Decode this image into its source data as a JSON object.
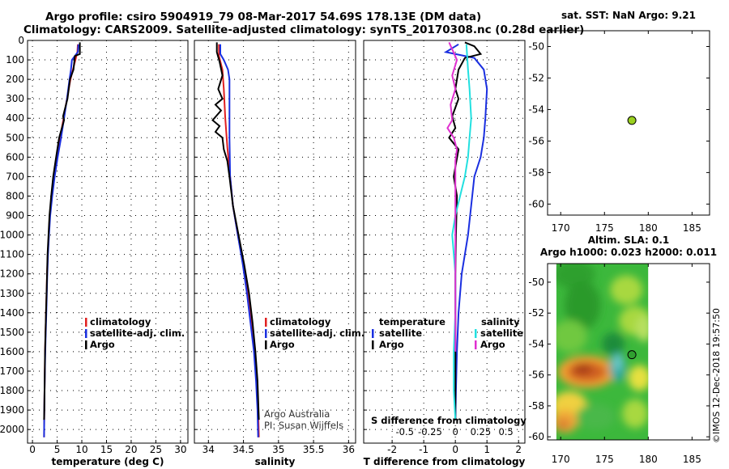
{
  "header": {
    "line1": "Argo profile: csiro 5904919_79 08-Mar-2017 54.69S 178.13E (DM data)",
    "line2": "Climatology: CARS2009. Satellite-adjusted climatology: synTS_20170308.nc (0.28d earlier)"
  },
  "colors": {
    "climatology": "#e02020",
    "satellite": "#1a2fe0",
    "argo": "#000000",
    "satellite_s": "#22e0e0",
    "argo_s": "#e030d0"
  },
  "chart_data": [
    {
      "type": "line",
      "name": "temperature-profile",
      "xlabel": "temperature (deg C)",
      "ylabel": "",
      "xlim": [
        -1,
        31.5
      ],
      "ylim": [
        2070,
        0
      ],
      "xticks": [
        0,
        5,
        10,
        15,
        20,
        25,
        30
      ],
      "xticklabels": [
        "0",
        "5",
        "10",
        "15",
        "20",
        "25",
        "30"
      ],
      "yticks": [
        0,
        100,
        200,
        300,
        400,
        500,
        600,
        700,
        800,
        900,
        1000,
        1100,
        1200,
        1300,
        1400,
        1500,
        1600,
        1700,
        1800,
        1900,
        2000
      ],
      "yticklabels": [
        "0",
        "100",
        "200",
        "300",
        "400",
        "500",
        "600",
        "700",
        "800",
        "900",
        "1000",
        "1100",
        "1200",
        "1300",
        "1400",
        "1500",
        "1600",
        "1700",
        "1800",
        "1900",
        "2000"
      ],
      "legend": [
        "climatology",
        "satellite-adj. clim.",
        "Argo"
      ],
      "series": [
        {
          "name": "climatology",
          "color": "#e02020",
          "points": [
            [
              9.2,
              20
            ],
            [
              9.1,
              60
            ],
            [
              8.7,
              100
            ],
            [
              8.2,
              150
            ],
            [
              7.7,
              200
            ],
            [
              7.0,
              300
            ],
            [
              6.3,
              400
            ],
            [
              5.6,
              500
            ],
            [
              4.9,
              600
            ],
            [
              4.3,
              700
            ],
            [
              3.9,
              800
            ],
            [
              3.5,
              900
            ],
            [
              3.3,
              1000
            ],
            [
              3.1,
              1100
            ],
            [
              2.95,
              1200
            ],
            [
              2.85,
              1300
            ],
            [
              2.75,
              1400
            ],
            [
              2.65,
              1500
            ],
            [
              2.55,
              1600
            ],
            [
              2.5,
              1700
            ],
            [
              2.45,
              1800
            ],
            [
              2.4,
              1900
            ],
            [
              2.35,
              2040
            ]
          ]
        },
        {
          "name": "satellite-adj. clim.",
          "color": "#1a2fe0",
          "points": [
            [
              9.3,
              20
            ],
            [
              9.2,
              60
            ],
            [
              8.0,
              100
            ],
            [
              7.8,
              150
            ],
            [
              7.5,
              200
            ],
            [
              7.0,
              300
            ],
            [
              6.4,
              400
            ],
            [
              5.8,
              500
            ],
            [
              5.1,
              600
            ],
            [
              4.5,
              700
            ],
            [
              4.0,
              800
            ],
            [
              3.6,
              900
            ],
            [
              3.35,
              1000
            ],
            [
              3.15,
              1100
            ],
            [
              3.0,
              1200
            ],
            [
              2.9,
              1300
            ],
            [
              2.8,
              1400
            ],
            [
              2.7,
              1500
            ],
            [
              2.6,
              1600
            ],
            [
              2.52,
              1700
            ],
            [
              2.45,
              1800
            ],
            [
              2.4,
              1900
            ],
            [
              2.35,
              2040
            ]
          ]
        },
        {
          "name": "Argo",
          "color": "#000000",
          "points": [
            [
              9.6,
              10
            ],
            [
              9.6,
              70
            ],
            [
              8.6,
              80
            ],
            [
              8.3,
              150
            ],
            [
              7.6,
              200
            ],
            [
              7.1,
              300
            ],
            [
              6.2,
              390
            ],
            [
              6.4,
              410
            ],
            [
              5.4,
              500
            ],
            [
              4.8,
              600
            ],
            [
              4.2,
              700
            ],
            [
              3.8,
              800
            ],
            [
              3.45,
              900
            ],
            [
              3.25,
              1000
            ],
            [
              3.05,
              1100
            ],
            [
              2.95,
              1200
            ],
            [
              2.85,
              1300
            ],
            [
              2.75,
              1400
            ],
            [
              2.65,
              1500
            ],
            [
              2.55,
              1600
            ],
            [
              2.5,
              1700
            ],
            [
              2.45,
              1800
            ],
            [
              2.4,
              1900
            ],
            [
              2.35,
              1950
            ]
          ]
        }
      ]
    },
    {
      "type": "line",
      "name": "salinity-profile",
      "xlabel": "salinity",
      "xlim": [
        33.8,
        36.1
      ],
      "ylim": [
        2070,
        0
      ],
      "xticks": [
        34,
        34.5,
        35,
        35.5,
        36
      ],
      "xticklabels": [
        "34",
        "34.5",
        "35",
        "35.5",
        "36"
      ],
      "legend": [
        "climatology",
        "satellite-adj. clim.",
        "Argo"
      ],
      "credits": [
        "Argo Australia",
        "PI: Susan Wijffels"
      ],
      "series": [
        {
          "name": "climatology",
          "color": "#e02020",
          "points": [
            [
              34.15,
              20
            ],
            [
              34.15,
              80
            ],
            [
              34.2,
              150
            ],
            [
              34.22,
              250
            ],
            [
              34.24,
              400
            ],
            [
              34.27,
              550
            ],
            [
              34.31,
              700
            ],
            [
              34.35,
              850
            ],
            [
              34.42,
              1000
            ],
            [
              34.5,
              1150
            ],
            [
              34.56,
              1300
            ],
            [
              34.61,
              1450
            ],
            [
              34.66,
              1600
            ],
            [
              34.69,
              1750
            ],
            [
              34.71,
              1900
            ],
            [
              34.72,
              2040
            ]
          ]
        },
        {
          "name": "satellite-adj. clim.",
          "color": "#1a2fe0",
          "points": [
            [
              34.17,
              20
            ],
            [
              34.17,
              70
            ],
            [
              34.22,
              100
            ],
            [
              34.28,
              150
            ],
            [
              34.3,
              200
            ],
            [
              34.3,
              300
            ],
            [
              34.3,
              500
            ],
            [
              34.31,
              700
            ],
            [
              34.35,
              850
            ],
            [
              34.42,
              1000
            ],
            [
              34.49,
              1150
            ],
            [
              34.55,
              1300
            ],
            [
              34.6,
              1450
            ],
            [
              34.65,
              1600
            ],
            [
              34.68,
              1750
            ],
            [
              34.7,
              1900
            ],
            [
              34.71,
              2040
            ]
          ]
        },
        {
          "name": "Argo",
          "color": "#000000",
          "points": [
            [
              34.12,
              10
            ],
            [
              34.12,
              60
            ],
            [
              34.16,
              110
            ],
            [
              34.2,
              180
            ],
            [
              34.14,
              250
            ],
            [
              34.2,
              300
            ],
            [
              34.1,
              330
            ],
            [
              34.18,
              360
            ],
            [
              34.06,
              410
            ],
            [
              34.16,
              440
            ],
            [
              34.1,
              470
            ],
            [
              34.2,
              500
            ],
            [
              34.22,
              560
            ],
            [
              34.27,
              620
            ],
            [
              34.3,
              700
            ],
            [
              34.35,
              850
            ],
            [
              34.43,
              1000
            ],
            [
              34.51,
              1150
            ],
            [
              34.58,
              1300
            ],
            [
              34.63,
              1450
            ],
            [
              34.67,
              1600
            ],
            [
              34.7,
              1750
            ],
            [
              34.72,
              1950
            ]
          ]
        }
      ]
    },
    {
      "type": "line",
      "name": "difference-profile",
      "xlabel": "T difference from climatology",
      "xlabel2": "S difference from climatology",
      "xlim": [
        -2.9,
        2.2
      ],
      "ylim": [
        2070,
        0
      ],
      "xticks": [
        -2,
        -1,
        0,
        1,
        2
      ],
      "xticklabels": [
        "-2",
        "-1",
        "0",
        "1",
        "2"
      ],
      "s_ticklabels": [
        "-0.5",
        "-0.25",
        "0",
        "0.25",
        "0.5"
      ],
      "legend_temperature": {
        "title": "temperature",
        "items": [
          "satellite",
          "Argo"
        ]
      },
      "legend_salinity": {
        "title": "salinity",
        "items": [
          "satellite",
          "Argo"
        ]
      },
      "series": [
        {
          "name": "T satellite",
          "color": "#1a2fe0",
          "points": [
            [
              0.1,
              20
            ],
            [
              -0.3,
              60
            ],
            [
              0.6,
              90
            ],
            [
              0.9,
              150
            ],
            [
              1.0,
              250
            ],
            [
              0.95,
              400
            ],
            [
              0.9,
              500
            ],
            [
              0.8,
              600
            ],
            [
              0.6,
              700
            ],
            [
              0.5,
              850
            ],
            [
              0.4,
              1000
            ],
            [
              0.2,
              1200
            ],
            [
              0.1,
              1400
            ],
            [
              0.05,
              1600
            ],
            [
              0.02,
              1800
            ],
            [
              0.0,
              1950
            ]
          ]
        },
        {
          "name": "T Argo",
          "color": "#000000",
          "points": [
            [
              0.3,
              10
            ],
            [
              0.6,
              30
            ],
            [
              0.8,
              70
            ],
            [
              0.3,
              90
            ],
            [
              0.1,
              150
            ],
            [
              0.0,
              250
            ],
            [
              0.1,
              300
            ],
            [
              -0.1,
              390
            ],
            [
              0.0,
              450
            ],
            [
              -0.2,
              500
            ],
            [
              0.1,
              560
            ],
            [
              0.0,
              650
            ],
            [
              -0.05,
              700
            ],
            [
              0.05,
              800
            ],
            [
              0.02,
              1000
            ],
            [
              0.0,
              1200
            ],
            [
              0.0,
              1400
            ],
            [
              0.0,
              1600
            ],
            [
              0.0,
              1800
            ],
            [
              0.0,
              1950
            ]
          ]
        },
        {
          "name": "S satellite",
          "color": "#22e0e0",
          "points": [
            [
              0.35,
              20
            ],
            [
              0.4,
              150
            ],
            [
              0.45,
              250
            ],
            [
              0.5,
              400
            ],
            [
              0.45,
              500
            ],
            [
              0.4,
              600
            ],
            [
              0.3,
              700
            ],
            [
              0.15,
              800
            ],
            [
              0.0,
              900
            ],
            [
              -0.1,
              1000
            ],
            [
              0.0,
              1200
            ],
            [
              0.0,
              1400
            ],
            [
              -0.05,
              1600
            ],
            [
              -0.05,
              1800
            ],
            [
              0.0,
              1950
            ]
          ]
        },
        {
          "name": "S Argo",
          "color": "#e030d0",
          "points": [
            [
              -0.2,
              10
            ],
            [
              0.05,
              100
            ],
            [
              -0.1,
              180
            ],
            [
              0.0,
              250
            ],
            [
              -0.15,
              330
            ],
            [
              -0.1,
              410
            ],
            [
              -0.25,
              450
            ],
            [
              -0.05,
              500
            ],
            [
              0.05,
              560
            ],
            [
              0.0,
              620
            ],
            [
              0.0,
              1400
            ],
            [
              0.0,
              1550
            ],
            [
              0.0,
              1600
            ]
          ]
        }
      ]
    },
    {
      "type": "scatter",
      "name": "sst-map",
      "title": "sat. SST: NaN Argo: 9.21",
      "xlim": [
        168.5,
        187
      ],
      "ylim": [
        -60.7,
        -49
      ],
      "xticks": [
        170,
        175,
        180,
        185
      ],
      "xticklabels": [
        "170",
        "175",
        "180",
        "185"
      ],
      "yticks": [
        -50,
        -52,
        -54,
        -56,
        -58,
        -60
      ],
      "yticklabels": [
        "-50",
        "-52",
        "-54",
        "-56",
        "-58",
        "-60"
      ],
      "points": [
        {
          "x": 178.13,
          "y": -54.69,
          "color": "#9ad020"
        }
      ]
    },
    {
      "type": "heatmap",
      "name": "sla-map",
      "title": "Altim. SLA: 0.1",
      "subtitle": "Argo h1000: 0.023 h2000: 0.011",
      "xlim": [
        168.5,
        187
      ],
      "ylim": [
        -60.2,
        -48.8
      ],
      "xticks": [
        170,
        175,
        180,
        185
      ],
      "xticklabels": [
        "170",
        "175",
        "180",
        "185"
      ],
      "yticks": [
        -50,
        -52,
        -54,
        -56,
        -58,
        -60
      ],
      "yticklabels": [
        "-50",
        "-52",
        "-54",
        "-56",
        "-58",
        "-60"
      ],
      "data_extent_x": [
        169.5,
        180.0
      ],
      "points": [
        {
          "x": 178.13,
          "y": -54.69,
          "color": "#30a030"
        }
      ]
    }
  ],
  "footer": {
    "timestamp": "©IMOS 12-Dec-2018 19:57:50"
  }
}
